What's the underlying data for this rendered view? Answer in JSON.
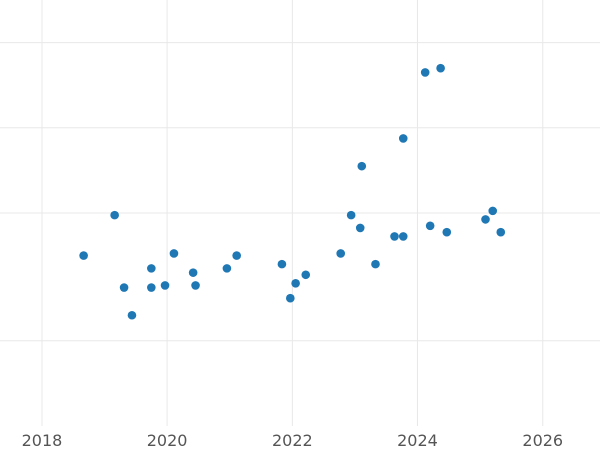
{
  "chart_data": {
    "type": "scatter",
    "title": "",
    "xlabel": "",
    "ylabel": "",
    "x_axis_type": "date",
    "xlim": [
      "2017-05-01",
      "2026-12-01"
    ],
    "ylim": [
      -0.5,
      9.5
    ],
    "x_ticks": [
      "2018",
      "2020",
      "2022",
      "2024",
      "2026"
    ],
    "y_gridlines": [
      1.5,
      4.5,
      6.5,
      8.5
    ],
    "y_tick_labels_shown": false,
    "grid": true,
    "legend": "none",
    "point_color": "#1f77b4",
    "points": [
      {
        "x": "2018-09-01",
        "y": 3.5
      },
      {
        "x": "2019-03-01",
        "y": 4.45
      },
      {
        "x": "2019-04-25",
        "y": 2.75
      },
      {
        "x": "2019-06-10",
        "y": 2.1
      },
      {
        "x": "2019-10-01",
        "y": 2.75
      },
      {
        "x": "2019-10-01",
        "y": 3.2
      },
      {
        "x": "2019-12-20",
        "y": 2.8
      },
      {
        "x": "2020-02-10",
        "y": 3.55
      },
      {
        "x": "2020-06-01",
        "y": 3.1
      },
      {
        "x": "2020-06-15",
        "y": 2.8
      },
      {
        "x": "2020-12-15",
        "y": 3.2
      },
      {
        "x": "2021-02-10",
        "y": 3.5
      },
      {
        "x": "2021-11-01",
        "y": 3.3
      },
      {
        "x": "2021-12-20",
        "y": 2.5
      },
      {
        "x": "2022-01-20",
        "y": 2.85
      },
      {
        "x": "2022-03-20",
        "y": 3.05
      },
      {
        "x": "2022-10-10",
        "y": 3.55
      },
      {
        "x": "2022-12-10",
        "y": 4.45
      },
      {
        "x": "2023-02-01",
        "y": 4.15
      },
      {
        "x": "2023-02-10",
        "y": 5.6
      },
      {
        "x": "2023-05-01",
        "y": 3.3
      },
      {
        "x": "2023-08-20",
        "y": 3.95
      },
      {
        "x": "2023-10-10",
        "y": 3.95
      },
      {
        "x": "2023-10-10",
        "y": 6.25
      },
      {
        "x": "2024-02-15",
        "y": 7.8
      },
      {
        "x": "2024-03-15",
        "y": 4.2
      },
      {
        "x": "2024-05-15",
        "y": 7.9
      },
      {
        "x": "2024-06-20",
        "y": 4.05
      },
      {
        "x": "2025-02-01",
        "y": 4.35
      },
      {
        "x": "2025-03-15",
        "y": 4.55
      },
      {
        "x": "2025-05-01",
        "y": 4.05
      }
    ]
  }
}
